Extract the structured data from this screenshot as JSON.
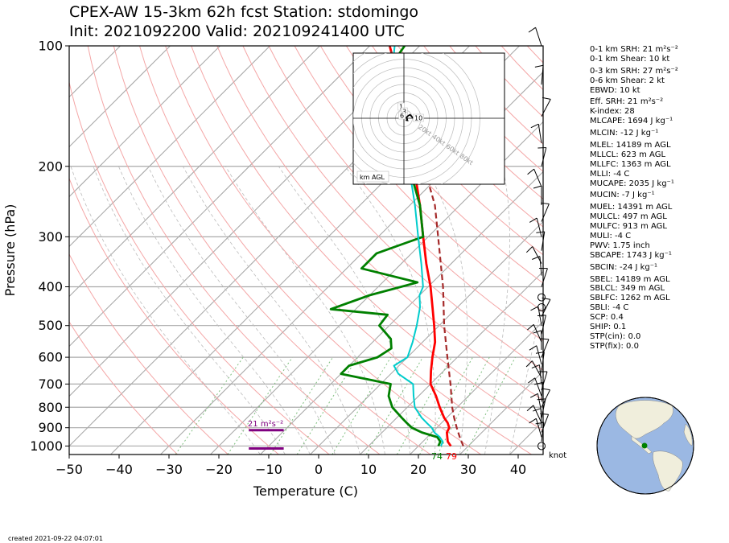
{
  "title_line1": "CPEX-AW 15-3km  62h fcst  Station: stdomingo",
  "title_line2": "Init: 2021092200  Valid: 202109241400 UTC",
  "created": "created 2021-09-22 04:07:01",
  "hodograph_label": "km AGL",
  "hodo_ring_labels": [
    "20kt",
    "40kt",
    "60kt",
    "80kt"
  ],
  "hodo_height_labels": [
    "1",
    "3",
    "6",
    "10"
  ],
  "srh_bar_label": "21 m²s⁻²",
  "knot_label": "knot",
  "surface_dewpoint": "74",
  "surface_temp": "79",
  "indices": [
    "0-1 km SRH: 21 m²s⁻²",
    "0-1 km Shear: 10 kt",
    "0-3 km SRH: 27 m²s⁻²",
    "0-6 km Shear: 2 kt",
    "EBWD: 10 kt",
    "Eff. SRH: 21 m²s⁻²",
    "K-index: 28",
    "MLCAPE: 1694 J kg⁻¹",
    "MLCIN: -12 J kg⁻¹",
    "MLEL: 14189 m AGL",
    "MLLCL: 623 m AGL",
    "MLLFC: 1363 m AGL",
    "MLLI: -4 C",
    "MUCAPE: 2035 J kg⁻¹",
    "MUCIN: -7 J kg⁻¹",
    "MUEL: 14391 m AGL",
    "MULCL: 497 m AGL",
    "MULFC: 913 m AGL",
    "MULI: -4 C",
    "PWV: 1.75 inch",
    "SBCAPE: 1743 J kg⁻¹",
    "SBCIN: -24 J kg⁻¹",
    "SBEL: 14189 m AGL",
    "SBLCL: 349 m AGL",
    "SBLFC: 1262 m AGL",
    "SBLI: -4 C",
    "SCP: 0.4",
    "SHIP: 0.1",
    "STP(cin): 0.0",
    "STP(fix): 0.0"
  ],
  "colors": {
    "temperature": "#ff0000",
    "dewpoint": "#008000",
    "wetbulb": "#00cccc",
    "parcel": "#a52a2a",
    "srh_bar": "#800080",
    "dry_adiabat": "#f4a6a6",
    "moist_adiabat": "#bbbbbb",
    "mixing_ratio": "#7fbf7f",
    "globe_ocean": "#9bb8e3",
    "globe_land": "#f0eedc"
  },
  "chart_data": {
    "type": "skew-t",
    "xlabel": "Temperature (C)",
    "ylabel": "Pressure (hPa)",
    "xlim": [
      -50,
      45
    ],
    "ylim": [
      1050,
      100
    ],
    "x_ticks": [
      -50,
      -40,
      -30,
      -20,
      -10,
      0,
      10,
      20,
      30,
      40
    ],
    "x_tick_labels": [
      "−50",
      "−40",
      "−30",
      "−20",
      "−10",
      "0",
      "10",
      "20",
      "30",
      "40"
    ],
    "y_ticks": [
      100,
      200,
      300,
      400,
      500,
      600,
      700,
      800,
      900,
      1000
    ],
    "y_tick_labels": [
      "100",
      "200",
      "300",
      "400",
      "500",
      "600",
      "700",
      "800",
      "900",
      "1000"
    ],
    "skew_per_log_decade": 53,
    "grid": true,
    "series": [
      {
        "key": "temperature",
        "points": [
          [
            1000,
            26.5
          ],
          [
            975,
            25
          ],
          [
            950,
            24
          ],
          [
            925,
            23
          ],
          [
            900,
            22.5
          ],
          [
            875,
            21.2
          ],
          [
            850,
            19.5
          ],
          [
            800,
            16.5
          ],
          [
            750,
            13.5
          ],
          [
            700,
            10
          ],
          [
            650,
            7.5
          ],
          [
            600,
            5
          ],
          [
            550,
            2.5
          ],
          [
            500,
            -1
          ],
          [
            450,
            -5
          ],
          [
            400,
            -9.5
          ],
          [
            350,
            -15
          ],
          [
            300,
            -21
          ],
          [
            250,
            -28
          ],
          [
            200,
            -37
          ],
          [
            150,
            -48
          ],
          [
            120,
            -58
          ],
          [
            100,
            -66
          ]
        ]
      },
      {
        "key": "dewpoint",
        "points": [
          [
            1000,
            24
          ],
          [
            975,
            23.5
          ],
          [
            950,
            22
          ],
          [
            925,
            18
          ],
          [
            900,
            15
          ],
          [
            875,
            13
          ],
          [
            850,
            11
          ],
          [
            800,
            7
          ],
          [
            750,
            4
          ],
          [
            700,
            2
          ],
          [
            660,
            -10
          ],
          [
            630,
            -10
          ],
          [
            600,
            -6
          ],
          [
            570,
            -5
          ],
          [
            540,
            -7
          ],
          [
            500,
            -12
          ],
          [
            470,
            -12.5
          ],
          [
            455,
            -25
          ],
          [
            420,
            -20
          ],
          [
            390,
            -13
          ],
          [
            360,
            -27
          ],
          [
            330,
            -27
          ],
          [
            300,
            -21
          ],
          [
            250,
            -28
          ],
          [
            200,
            -38
          ],
          [
            160,
            -52
          ],
          [
            130,
            -59
          ],
          [
            110,
            -62
          ],
          [
            100,
            -63
          ]
        ]
      },
      {
        "key": "wetbulb",
        "points": [
          [
            1000,
            24.5
          ],
          [
            975,
            24
          ],
          [
            950,
            22.5
          ],
          [
            925,
            20.5
          ],
          [
            900,
            19
          ],
          [
            875,
            17
          ],
          [
            850,
            15
          ],
          [
            800,
            11.5
          ],
          [
            750,
            9
          ],
          [
            700,
            6.5
          ],
          [
            660,
            1.5
          ],
          [
            630,
            -1
          ],
          [
            600,
            0
          ],
          [
            550,
            -2
          ],
          [
            500,
            -4.5
          ],
          [
            450,
            -7.5
          ],
          [
            420,
            -10
          ],
          [
            400,
            -11
          ],
          [
            350,
            -16
          ],
          [
            300,
            -22
          ],
          [
            250,
            -29
          ],
          [
            200,
            -38
          ],
          [
            160,
            -49
          ],
          [
            130,
            -57
          ],
          [
            110,
            -62
          ],
          [
            100,
            -65
          ]
        ]
      },
      {
        "key": "parcel",
        "dashed": true,
        "points": [
          [
            1000,
            29
          ],
          [
            950,
            26.5
          ],
          [
            900,
            24
          ],
          [
            850,
            21.5
          ],
          [
            800,
            19
          ],
          [
            700,
            14
          ],
          [
            600,
            8
          ],
          [
            500,
            1
          ],
          [
            400,
            -7
          ],
          [
            300,
            -18
          ],
          [
            250,
            -25
          ],
          [
            200,
            -35
          ],
          [
            150,
            -48
          ],
          [
            100,
            -66
          ]
        ]
      }
    ],
    "srh_bars": [
      {
        "p_low": 1000,
        "t_start": -14,
        "t_end": -7
      },
      {
        "p_low": 900,
        "t_start": -14,
        "t_end": -7
      }
    ],
    "wind_barb_levels_hPa": [
      1000,
      975,
      950,
      925,
      900,
      875,
      850,
      825,
      800,
      775,
      750,
      725,
      700,
      675,
      650,
      625,
      600,
      575,
      550,
      525,
      500,
      475,
      450,
      425,
      400,
      375,
      350,
      325,
      300,
      275,
      250,
      225,
      200,
      175,
      150,
      125,
      100
    ],
    "hodograph_km": [
      [
        1.0,
        1.0
      ],
      [
        2.0,
        1.2
      ],
      [
        1.5,
        -0.6
      ],
      [
        2.5,
        -1.5
      ],
      [
        3.5,
        -2.0
      ],
      [
        5.0,
        -0.3
      ],
      [
        6.5,
        0.2
      ],
      [
        7.5,
        -0.8
      ],
      [
        9.0,
        -1.3
      ],
      [
        11.0,
        -0.4
      ]
    ],
    "hodo_rings_kt": [
      10,
      20,
      30,
      40,
      50,
      60,
      70,
      80,
      90
    ]
  },
  "globe_marker": {
    "lon": -70,
    "lat": 18.5
  }
}
